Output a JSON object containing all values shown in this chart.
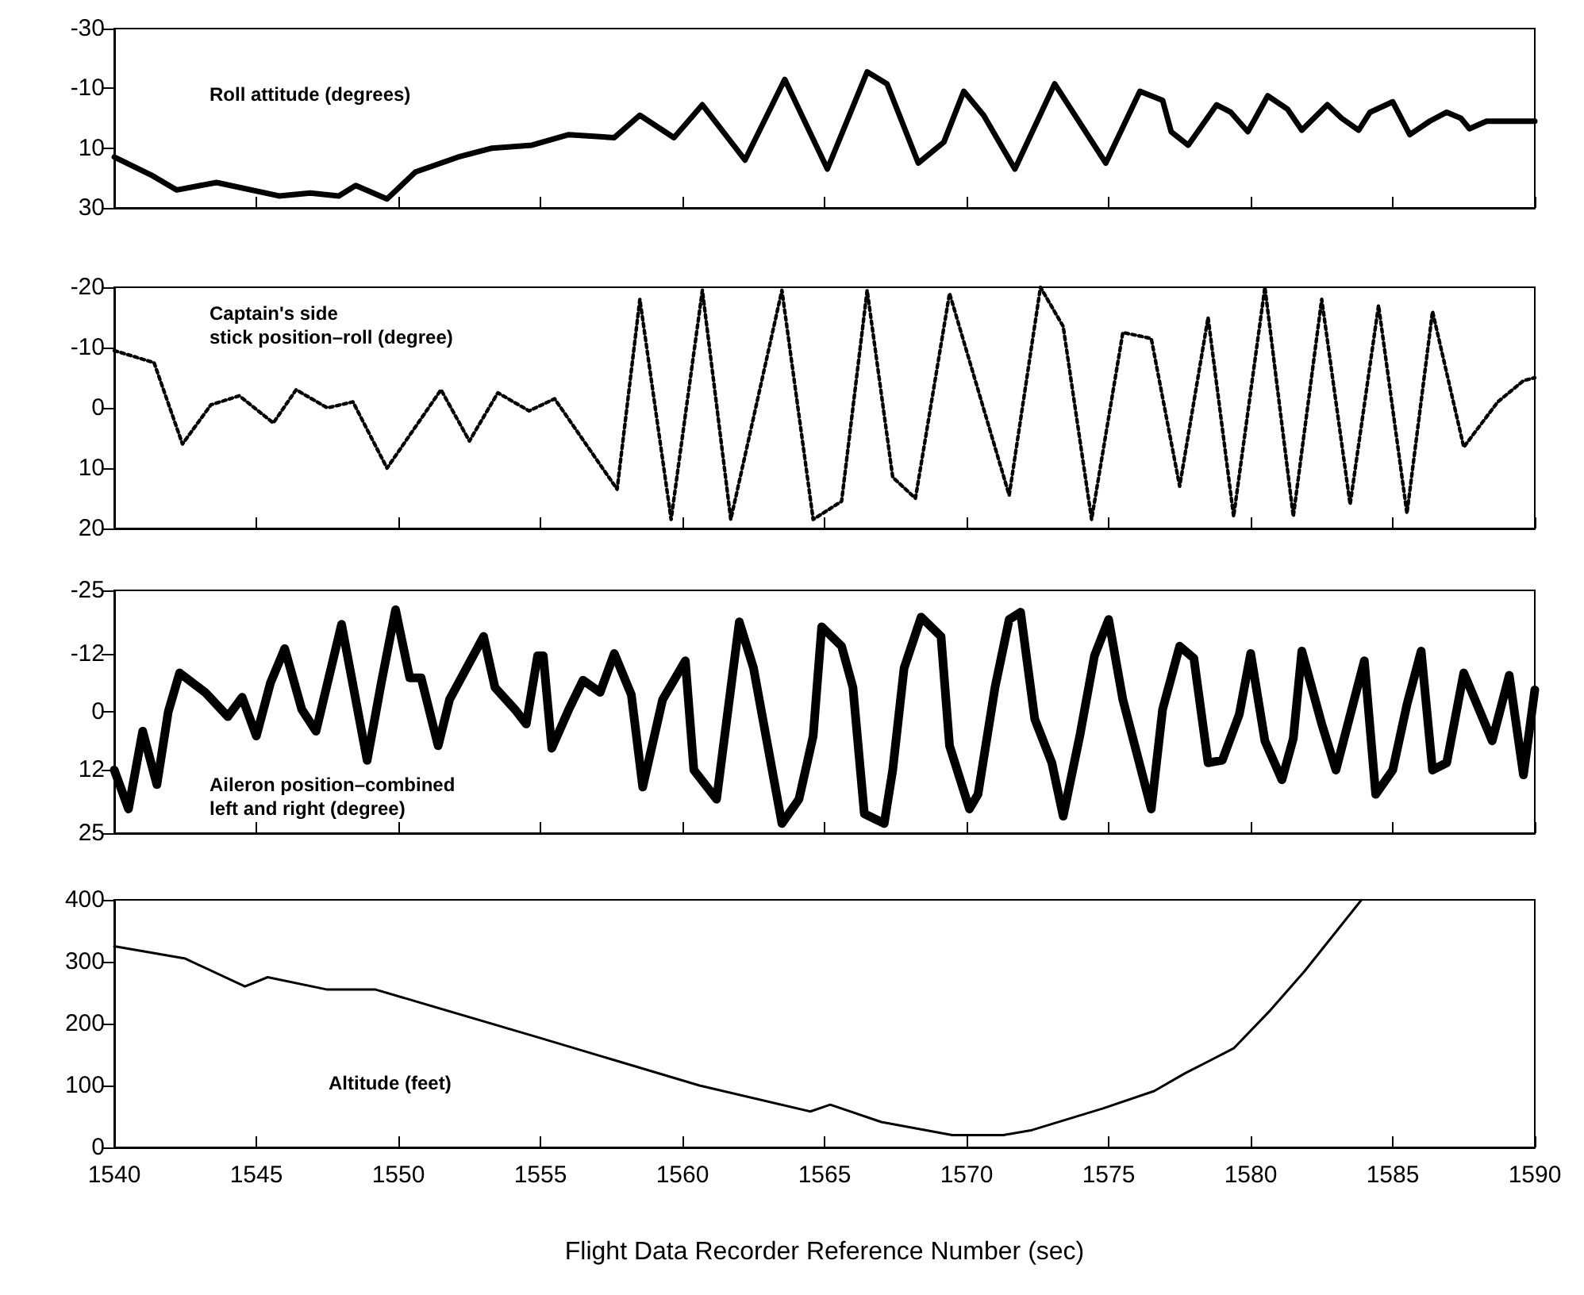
{
  "chart_data": [
    {
      "type": "line",
      "title": "Roll attitude (degrees)",
      "color": "#000000",
      "line_style": "solid",
      "marker": "none",
      "tick_labels": "y",
      "xlim": [
        1540,
        1590
      ],
      "xticks": [
        1540,
        1545,
        1550,
        1555,
        1560,
        1565,
        1570,
        1575,
        1580,
        1585,
        1590
      ],
      "ylim": [
        30,
        -30
      ],
      "yticks": [
        -30,
        -10,
        10,
        30
      ],
      "x": [
        1540,
        1541.3,
        1542.2,
        1543.6,
        1545.8,
        1546.9,
        1547.9,
        1548.5,
        1549.6,
        1550.6,
        1552.1,
        1553.3,
        1554.7,
        1556,
        1557.6,
        1558.5,
        1559.7,
        1560.7,
        1562.2,
        1563.6,
        1565.1,
        1566.5,
        1567.2,
        1568.3,
        1569.2,
        1569.9,
        1570.6,
        1571.7,
        1573.1,
        1574.9,
        1576.1,
        1576.9,
        1577.2,
        1577.8,
        1578.8,
        1579.3,
        1579.9,
        1580.6,
        1581.3,
        1581.8,
        1582.7,
        1583.2,
        1583.8,
        1584.2,
        1585,
        1585.6,
        1586.3,
        1586.9,
        1587.4,
        1587.7,
        1588.3,
        1590
      ],
      "values": [
        13,
        19,
        24,
        21.5,
        26,
        25,
        26,
        22.5,
        27,
        18,
        13,
        10,
        9,
        5.5,
        6.5,
        -1,
        6.5,
        -4.5,
        14,
        -13,
        17,
        -15.5,
        -11.5,
        15,
        8,
        -9,
        -1,
        17,
        -11.5,
        15,
        -9,
        -6,
        4.5,
        9,
        -4.5,
        -2,
        4.5,
        -7.5,
        -3,
        4,
        -4.5,
        0,
        4,
        -2,
        -5.5,
        5.5,
        1,
        -2,
        0,
        3.5,
        1,
        1
      ]
    },
    {
      "type": "line",
      "title": "Captain's side\nstick position–roll (degree)",
      "color": "#000000",
      "line_style": "dotted",
      "marker": "none",
      "tick_labels": "y",
      "xlim": [
        1540,
        1590
      ],
      "xticks": [
        1540,
        1545,
        1550,
        1555,
        1560,
        1565,
        1570,
        1575,
        1580,
        1585,
        1590
      ],
      "ylim": [
        20,
        -20
      ],
      "yticks": [
        -20,
        -10,
        0,
        10,
        20
      ],
      "x": [
        1540,
        1541.4,
        1542.4,
        1543.4,
        1544.4,
        1545.6,
        1546.4,
        1547.5,
        1548.4,
        1549.6,
        1551.5,
        1552.5,
        1553.5,
        1554.6,
        1555.5,
        1557.7,
        1558.5,
        1559.6,
        1560.7,
        1561.7,
        1563.5,
        1564.6,
        1565.6,
        1566.5,
        1567.4,
        1568.2,
        1569.4,
        1571.5,
        1572.6,
        1573.4,
        1574.4,
        1575.5,
        1576.5,
        1577.5,
        1578.5,
        1579.4,
        1580.5,
        1581.5,
        1582.5,
        1583.5,
        1584.5,
        1585.5,
        1586.4,
        1587.5,
        1588.7,
        1589.6,
        1590
      ],
      "values": [
        -9.5,
        -7.5,
        6,
        -0.5,
        -2,
        2.5,
        -3,
        0,
        -1,
        10,
        -3,
        5.5,
        -2.5,
        0.5,
        -1.5,
        13.5,
        -18,
        18.5,
        -19.5,
        18.5,
        -19.5,
        18.5,
        15.5,
        -19.5,
        11.5,
        15,
        -19,
        14.5,
        -20,
        -13.5,
        18.5,
        -12.5,
        -11.5,
        13,
        -15,
        18,
        -20,
        18,
        -18,
        16,
        -17,
        17.5,
        -16,
        6.5,
        -1,
        -4.5,
        -5
      ]
    },
    {
      "type": "line",
      "title": "Aileron position–combined\nleft and right (degree)",
      "color": "#000000",
      "line_style": "solid",
      "marker": "none",
      "tick_labels": "y",
      "xlim": [
        1540,
        1590
      ],
      "xticks": [
        1540,
        1545,
        1550,
        1555,
        1560,
        1565,
        1570,
        1575,
        1580,
        1585,
        1590
      ],
      "ylim": [
        25,
        -25
      ],
      "yticks": [
        -25,
        -12,
        0,
        12,
        25
      ],
      "x": [
        1540,
        1540.5,
        1541,
        1541.5,
        1541.9,
        1542.3,
        1543.2,
        1544,
        1544.5,
        1545,
        1545.5,
        1546,
        1546.6,
        1547.1,
        1548,
        1548.9,
        1549.4,
        1549.9,
        1550.4,
        1550.8,
        1551.4,
        1551.8,
        1553,
        1553.4,
        1554.1,
        1554.5,
        1554.9,
        1555.1,
        1555.4,
        1556,
        1556.5,
        1557.1,
        1557.6,
        1558.2,
        1558.6,
        1559.3,
        1560.1,
        1560.4,
        1561.2,
        1562,
        1562.5,
        1563.5,
        1564.1,
        1564.6,
        1564.9,
        1565.6,
        1566,
        1566.4,
        1567.1,
        1567.4,
        1567.8,
        1568.4,
        1569.1,
        1569.4,
        1570.1,
        1570.4,
        1571,
        1571.5,
        1571.9,
        1572.4,
        1573,
        1573.4,
        1574,
        1574.5,
        1575,
        1575.5,
        1576.5,
        1576.9,
        1577.5,
        1578,
        1578.5,
        1579,
        1579.6,
        1580,
        1580.5,
        1581.1,
        1581.5,
        1581.8,
        1582.5,
        1583,
        1584,
        1584.4,
        1585,
        1585.5,
        1586,
        1586.4,
        1586.9,
        1587.5,
        1588.5,
        1589.1,
        1589.6,
        1590
      ],
      "values": [
        12,
        20,
        4,
        15,
        0,
        -8,
        -4,
        1,
        -3,
        5,
        -6,
        -13,
        -0.5,
        4,
        -18,
        10,
        -6,
        -21,
        -7,
        -7,
        7,
        -2.5,
        -15.5,
        -5,
        -0.5,
        2.5,
        -11.5,
        -11.5,
        7.5,
        -0.5,
        -6.5,
        -4,
        -12,
        -3.5,
        15.5,
        -2.5,
        -10.5,
        12,
        18,
        -18.5,
        -9,
        23,
        18,
        5,
        -17.5,
        -13.5,
        -5,
        21,
        23,
        12,
        -9,
        -19.5,
        -15.5,
        7,
        20,
        17,
        -5,
        -19,
        -20.5,
        1.5,
        10.5,
        21.5,
        4.5,
        -11.5,
        -19,
        -2.5,
        20,
        -0.5,
        -13.5,
        -11,
        10.5,
        10,
        0.5,
        -12,
        6,
        14,
        5.5,
        -12.5,
        2.5,
        12,
        -10.5,
        17,
        12,
        -1.5,
        -12.5,
        12,
        10.5,
        -8,
        6,
        -7.5,
        13,
        -4.5
      ]
    },
    {
      "type": "line",
      "title": "Altitude (feet)",
      "xlabel": "Flight Data Recorder Reference Number (sec)",
      "color": "#000000",
      "line_style": "solid",
      "marker": "none",
      "xlim": [
        1540,
        1590
      ],
      "xticks": [
        1540,
        1545,
        1550,
        1555,
        1560,
        1565,
        1570,
        1575,
        1580,
        1585,
        1590
      ],
      "ylim": [
        0,
        400
      ],
      "yticks": [
        0,
        100,
        200,
        300,
        400
      ],
      "x": [
        1540,
        1542.5,
        1544.6,
        1545.4,
        1547.5,
        1549.2,
        1554.9,
        1560.6,
        1564.5,
        1565.2,
        1567,
        1569.5,
        1571.3,
        1572.3,
        1574.8,
        1576.6,
        1577.7,
        1579.4,
        1580.7,
        1581.9,
        1583.9
      ],
      "values": [
        325,
        305,
        260,
        275,
        255,
        255,
        178,
        100,
        58,
        69,
        41,
        20,
        20,
        28,
        63,
        91,
        120,
        160,
        222,
        285,
        400
      ]
    }
  ]
}
